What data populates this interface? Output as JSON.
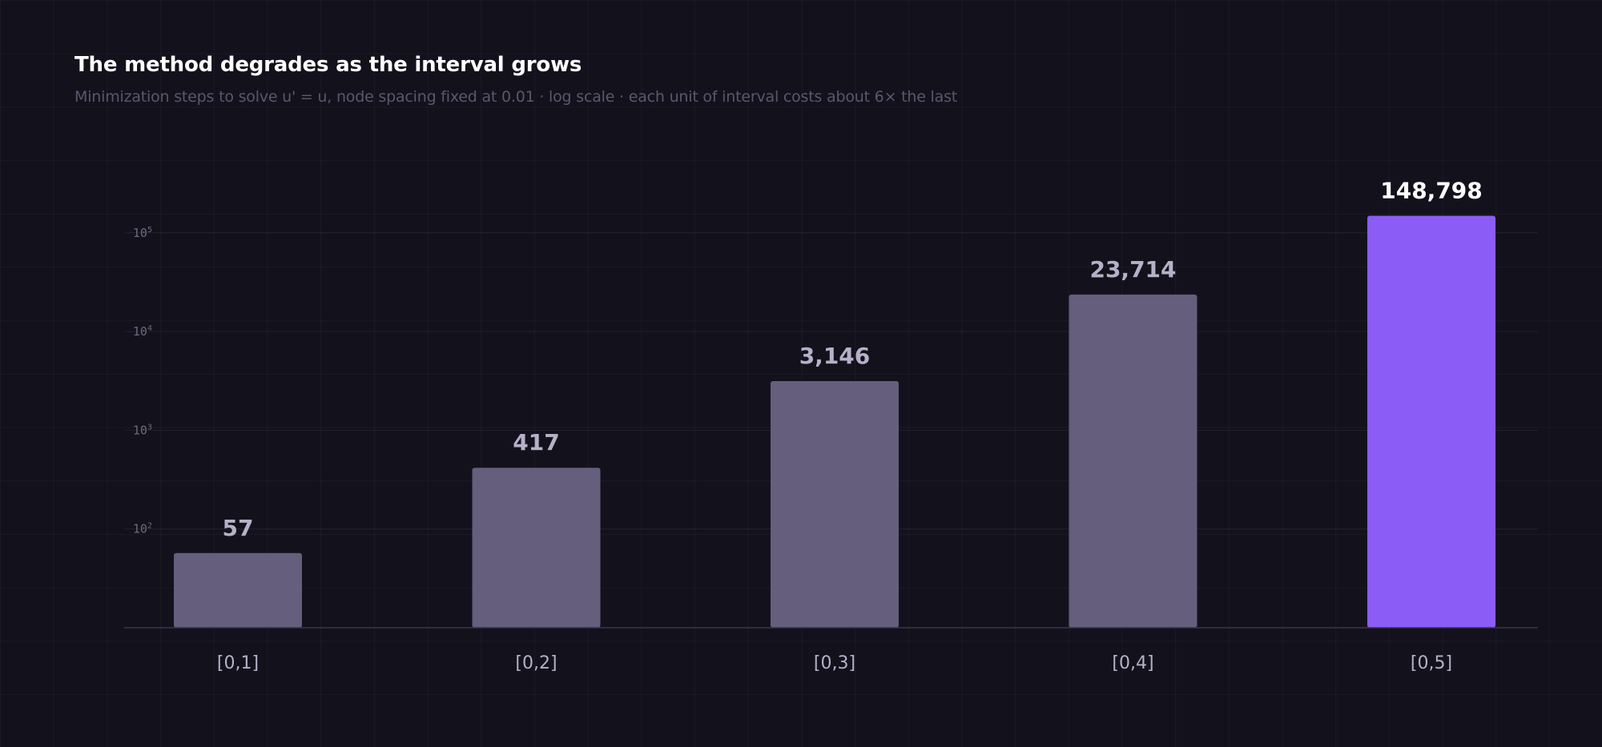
{
  "chart_data": {
    "type": "bar",
    "title": "The method degrades as the interval grows",
    "subtitle": "Minimization steps to solve u' = u, node spacing fixed at 0.01 · log scale · each unit of interval costs about 6× the last",
    "categories": [
      "[0,1]",
      "[0,2]",
      "[0,3]",
      "[0,4]",
      "[0,5]"
    ],
    "values": [
      57,
      417,
      3146,
      23714,
      148798
    ],
    "value_labels": [
      "57",
      "417",
      "3,146",
      "23,714",
      "148,798"
    ],
    "y_scale": "log",
    "ylim": [
      10,
      250000
    ],
    "y_ticks": [
      {
        "value": 100,
        "base": "10",
        "exp": "2"
      },
      {
        "value": 1000,
        "base": "10",
        "exp": "3"
      },
      {
        "value": 10000,
        "base": "10",
        "exp": "4"
      },
      {
        "value": 100000,
        "base": "10",
        "exp": "5"
      }
    ],
    "xlabel": "",
    "ylabel": "",
    "grid": true,
    "highlight_index": 4,
    "colors": {
      "background": "#13111c",
      "bar": "#655e7c",
      "highlight": "#8b5cf6",
      "label": "#b6b0c8",
      "label_highlight": "#ffffff",
      "axis_tick": "#6e6880"
    }
  }
}
